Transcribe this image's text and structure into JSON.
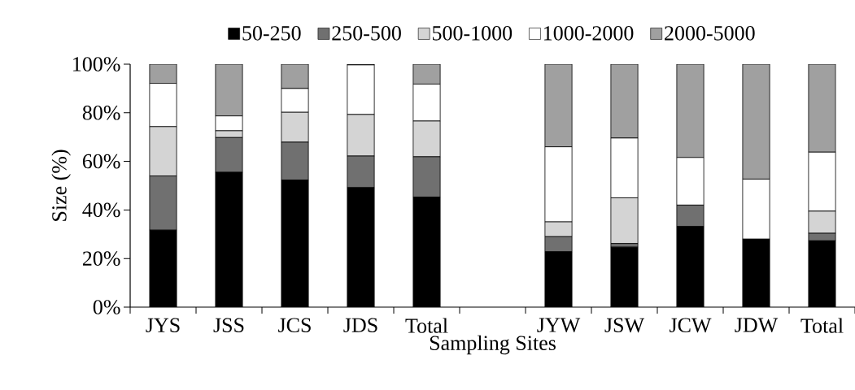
{
  "chart_data": {
    "type": "bar",
    "stacked": true,
    "xlabel": "Sampling Sites",
    "ylabel": "Size (%)",
    "categories": [
      "JYS",
      "JSS",
      "JCS",
      "JDS",
      "Total",
      null,
      "JYW",
      "JSW",
      "JCW",
      "JDW",
      "Total"
    ],
    "series": [
      {
        "name": "50-250",
        "color": "#000000",
        "values": [
          31.7,
          55.5,
          52.3,
          49.2,
          45.3,
          null,
          22.8,
          24.7,
          33.2,
          28.0,
          27.3
        ]
      },
      {
        "name": "250-500",
        "color": "#707070",
        "values": [
          22.3,
          14.3,
          15.6,
          13.0,
          16.6,
          null,
          6.2,
          1.5,
          8.8,
          0,
          3.1
        ]
      },
      {
        "name": "500-1000",
        "color": "#d4d4d4",
        "values": [
          20.3,
          2.8,
          12.3,
          17.1,
          14.7,
          null,
          6.1,
          18.8,
          0,
          0,
          9.1
        ]
      },
      {
        "name": "1000-2000",
        "color": "#ffffff",
        "values": [
          17.8,
          6.1,
          9.8,
          20.4,
          15.2,
          null,
          30.9,
          24.6,
          19.6,
          24.7,
          24.3
        ]
      },
      {
        "name": "2000-5000",
        "color": "#a0a0a0",
        "values": [
          7.9,
          21.3,
          10.0,
          0.3,
          8.2,
          null,
          34.0,
          30.4,
          38.4,
          47.3,
          36.2
        ]
      }
    ],
    "ylim": [
      0,
      100
    ],
    "yticks": [
      {
        "value": 0,
        "label": "0%"
      },
      {
        "value": 20,
        "label": "20%"
      },
      {
        "value": 40,
        "label": "40%"
      },
      {
        "value": 60,
        "label": "60%"
      },
      {
        "value": 80,
        "label": "80%"
      },
      {
        "value": 100,
        "label": "100%"
      }
    ],
    "legend": "top",
    "grid": false
  }
}
